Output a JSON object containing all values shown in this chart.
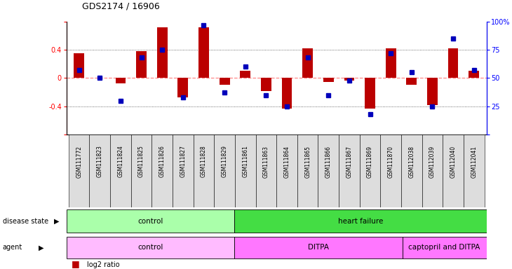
{
  "title": "GDS2174 / 16906",
  "samples": [
    "GSM111772",
    "GSM111823",
    "GSM111824",
    "GSM111825",
    "GSM111826",
    "GSM111827",
    "GSM111828",
    "GSM111829",
    "GSM111861",
    "GSM111863",
    "GSM111864",
    "GSM111865",
    "GSM111866",
    "GSM111867",
    "GSM111869",
    "GSM111870",
    "GSM112038",
    "GSM112039",
    "GSM112040",
    "GSM112041"
  ],
  "log2_ratio": [
    0.35,
    0.0,
    -0.08,
    0.38,
    0.72,
    -0.27,
    0.72,
    -0.1,
    0.1,
    -0.18,
    -0.43,
    0.42,
    -0.06,
    -0.04,
    -0.43,
    0.42,
    -0.1,
    -0.38,
    0.42,
    0.1
  ],
  "percentile": [
    57,
    50,
    30,
    68,
    75,
    33,
    97,
    37,
    60,
    35,
    25,
    68,
    35,
    48,
    18,
    72,
    55,
    25,
    85,
    57
  ],
  "disease_state_groups": [
    {
      "label": "control",
      "start": 0,
      "end": 8,
      "color": "#AAFFAA"
    },
    {
      "label": "heart failure",
      "start": 8,
      "end": 20,
      "color": "#44DD44"
    }
  ],
  "agent_groups": [
    {
      "label": "control",
      "start": 0,
      "end": 8,
      "color": "#FFBBFF"
    },
    {
      "label": "DITPA",
      "start": 8,
      "end": 16,
      "color": "#FF77FF"
    },
    {
      "label": "captopril and DITPA",
      "start": 16,
      "end": 20,
      "color": "#FF77FF"
    }
  ],
  "ylim_left": [
    -0.8,
    0.8
  ],
  "ylim_right": [
    0,
    100
  ],
  "yticks_left": [
    -0.8,
    -0.4,
    0.0,
    0.4,
    0.8
  ],
  "yticks_right": [
    0,
    25,
    50,
    75,
    100
  ],
  "bar_color_red": "#BB0000",
  "bar_color_blue": "#0000BB",
  "zero_line_color": "#FF8888",
  "dotted_color": "#444444",
  "sample_box_color": "#DDDDDD"
}
